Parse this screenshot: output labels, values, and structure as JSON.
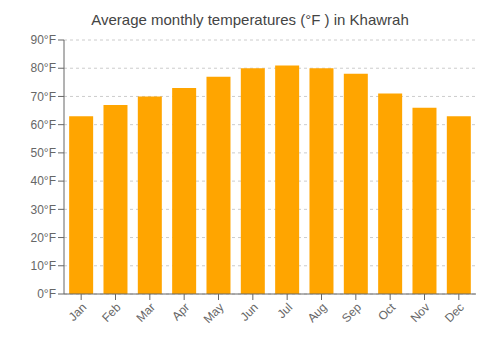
{
  "chart_data": {
    "type": "bar",
    "title": "Average monthly temperatures (°F ) in Khawrah",
    "categories": [
      "Jan",
      "Feb",
      "Mar",
      "Apr",
      "May",
      "Jun",
      "Jul",
      "Aug",
      "Sep",
      "Oct",
      "Nov",
      "Dec"
    ],
    "values": [
      63,
      67,
      70,
      73,
      77,
      80,
      81,
      80,
      78,
      71,
      66,
      63
    ],
    "color": "#FFA500",
    "ylim": [
      0,
      90
    ],
    "yticks": [
      {
        "value": 0,
        "label": "0°F"
      },
      {
        "value": 10,
        "label": "10°F"
      },
      {
        "value": 20,
        "label": "20°F"
      },
      {
        "value": 30,
        "label": "30°F"
      },
      {
        "value": 40,
        "label": "40°F"
      },
      {
        "value": 50,
        "label": "50°F"
      },
      {
        "value": 60,
        "label": "60°F"
      },
      {
        "value": 70,
        "label": "70°F"
      },
      {
        "value": 80,
        "label": "80°F"
      },
      {
        "value": 90,
        "label": "90°F"
      }
    ],
    "grid": true
  }
}
